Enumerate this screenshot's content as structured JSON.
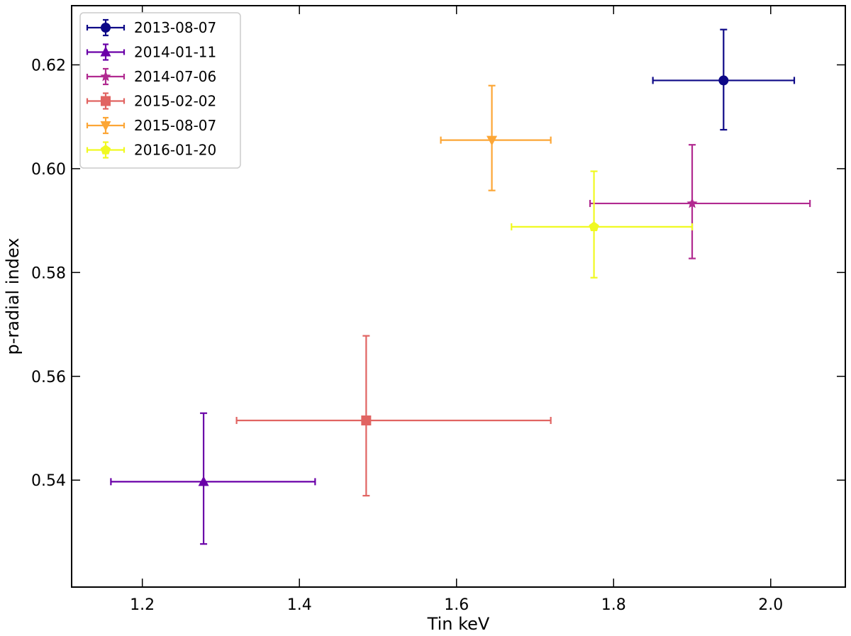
{
  "chart_data": {
    "type": "scatter",
    "title": "",
    "xlabel": "Tin keV",
    "ylabel": "p-radial index",
    "xlim": [
      1.11,
      2.095
    ],
    "ylim": [
      0.5194,
      0.6314
    ],
    "xticks": [
      1.2,
      1.4,
      1.6,
      1.8,
      2.0
    ],
    "xtick_labels": [
      "1.2",
      "1.4",
      "1.6",
      "1.8",
      "2.0"
    ],
    "yticks": [
      0.54,
      0.56,
      0.58,
      0.6,
      0.62
    ],
    "ytick_labels": [
      "0.54",
      "0.56",
      "0.58",
      "0.60",
      "0.62"
    ],
    "grid": false,
    "legend_position": "top-left",
    "series": [
      {
        "name": "2013-08-07",
        "color": "#0d0887",
        "marker": "circle",
        "x": 1.94,
        "y": 0.617,
        "xerr": [
          0.09,
          0.09
        ],
        "yerr": [
          0.0095,
          0.0098
        ]
      },
      {
        "name": "2014-01-11",
        "color": "#6a00a8",
        "marker": "triangle-up",
        "x": 1.278,
        "y": 0.5397,
        "xerr": [
          0.118,
          0.142
        ],
        "yerr": [
          0.012,
          0.0132
        ]
      },
      {
        "name": "2014-07-06",
        "color": "#b12a90",
        "marker": "star",
        "x": 1.9,
        "y": 0.5933,
        "xerr": [
          0.13,
          0.15
        ],
        "yerr": [
          0.0106,
          0.0113
        ]
      },
      {
        "name": "2015-02-02",
        "color": "#e16462",
        "marker": "square",
        "x": 1.485,
        "y": 0.5515,
        "xerr": [
          0.165,
          0.235
        ],
        "yerr": [
          0.0145,
          0.0163
        ]
      },
      {
        "name": "2015-08-07",
        "color": "#fca636",
        "marker": "triangle-down",
        "x": 1.645,
        "y": 0.6055,
        "xerr": [
          0.065,
          0.075
        ],
        "yerr": [
          0.0097,
          0.0105
        ]
      },
      {
        "name": "2016-01-20",
        "color": "#f0f921",
        "marker": "pentagon",
        "x": 1.775,
        "y": 0.5888,
        "xerr": [
          0.105,
          0.125
        ],
        "yerr": [
          0.0098,
          0.0107
        ]
      }
    ]
  }
}
